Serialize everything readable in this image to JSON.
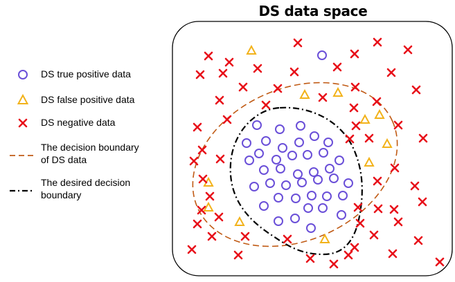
{
  "title": "DS data space",
  "legend": [
    {
      "label_lines": [
        "DS true positive data"
      ],
      "symbol": "circle",
      "color": "#6A4FD8"
    },
    {
      "label_lines": [
        "DS false positive data"
      ],
      "symbol": "triangle",
      "color": "#F2B21A"
    },
    {
      "label_lines": [
        "DS negative data"
      ],
      "symbol": "cross",
      "color": "#E8101A"
    },
    {
      "label_lines": [
        "The decision boundary",
        "of DS data"
      ],
      "symbol": "dashed-line",
      "color": "#C05A14"
    },
    {
      "label_lines": [
        "The desired decision",
        "boundary"
      ],
      "symbol": "dash-dot-line",
      "color": "#000000"
    }
  ],
  "colors": {
    "true_positive": "#6A4FD8",
    "false_positive": "#F2B21A",
    "negative": "#E8101A",
    "ds_boundary": "#C05A14",
    "desired_boundary": "#000000",
    "frame": "#000000"
  }
}
